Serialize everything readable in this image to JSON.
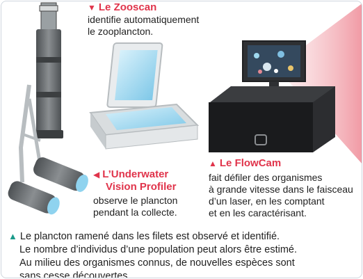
{
  "zooscan": {
    "title": "Le Zooscan",
    "line1": "identifie automatiquement",
    "line2": "le zooplancton."
  },
  "underwater": {
    "title_line1": "L’Underwater",
    "title_line2": "Vision Profiler",
    "line1": "observe le plancton",
    "line2": "pendant la collecte."
  },
  "flowcam": {
    "title": "Le FlowCam",
    "line1": "fait défiler des organismes",
    "line2": "à grande vitesse dans le faisceau",
    "line3": "d’un laser, en les comptant",
    "line4": "et en les caractérisant."
  },
  "caption": {
    "line1": "Le plancton ramené dans les filets est observé et identifié.",
    "line2": "Le nombre d’individus d’une population peut alors être estimé.",
    "line3": "Au milieu des organismes connus, de nouvelles espèces sont",
    "line4": "sans cesse découvertes."
  },
  "colors": {
    "accent_red": "#e0344b",
    "accent_teal": "#1b9a8a",
    "instrument_gray": "#6b6e71",
    "screen_blue": "#8fd3ef",
    "laser_pink": "#f2a0aa"
  },
  "icons": [
    "triangle-down-icon",
    "triangle-left-icon",
    "triangle-up-icon",
    "triangle-right-icon"
  ]
}
